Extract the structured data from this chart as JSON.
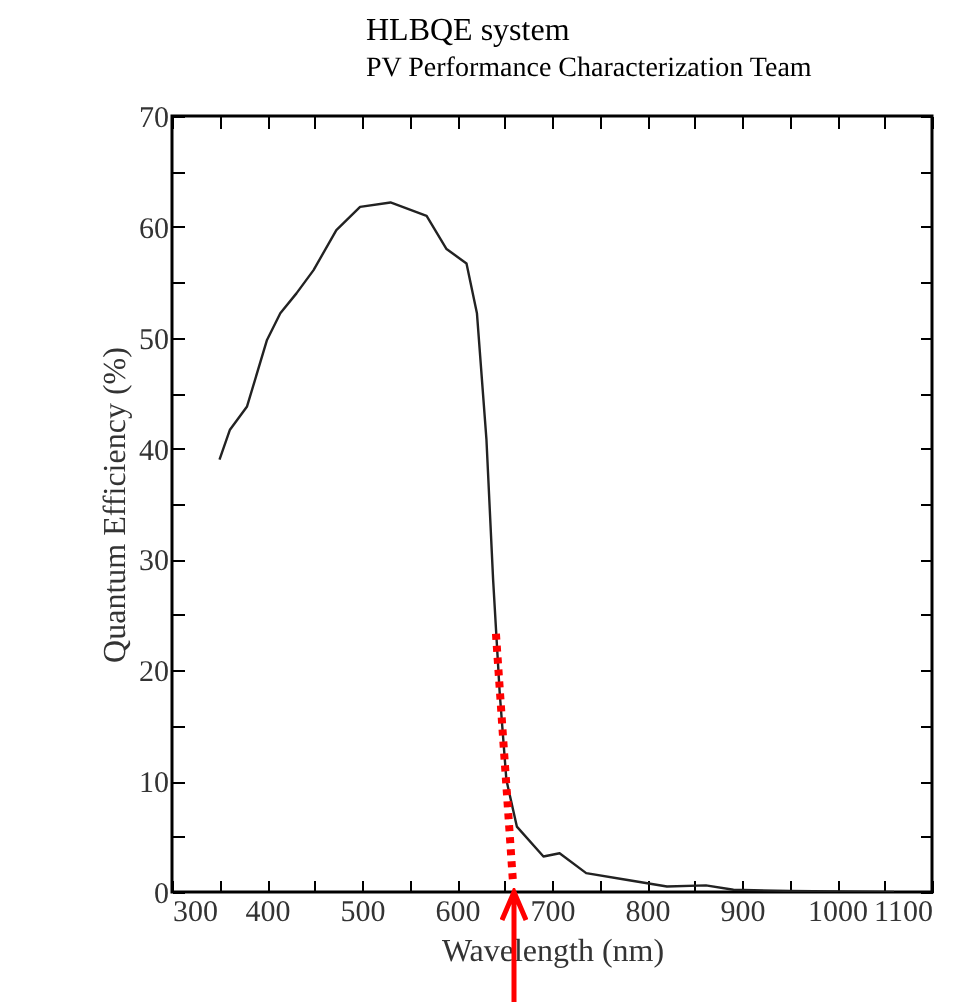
{
  "chart_data": {
    "type": "line",
    "title": "HLBQE system",
    "subtitle": "PV Performance Characterization Team",
    "xlabel": "Wavelength (nm)",
    "ylabel": "Quantum Efficiency (%)",
    "xlim": [
      300,
      1100
    ],
    "ylim": [
      0,
      70
    ],
    "xticks": [
      300,
      {
        "value": 350,
        "label": null
      },
      400,
      {
        "value": 450,
        "label": null
      },
      500,
      {
        "value": 550,
        "label": null
      },
      600,
      {
        "value": 650,
        "label": null
      },
      700,
      {
        "value": 750,
        "label": null
      },
      800,
      {
        "value": 850,
        "label": null
      },
      900,
      {
        "value": 950,
        "label": null
      },
      1000,
      {
        "value": 1050,
        "label": null
      },
      1100
    ],
    "yticks": [
      0,
      {
        "value": 5,
        "label": null
      },
      10,
      {
        "value": 15,
        "label": null
      },
      20,
      {
        "value": 25,
        "label": null
      },
      30,
      {
        "value": 35,
        "label": null
      },
      40,
      {
        "value": 45,
        "label": null
      },
      50,
      {
        "value": 55,
        "label": null
      },
      60,
      {
        "value": 65,
        "label": null
      },
      70
    ],
    "series": [
      {
        "color": "#222222",
        "line_style": "solid",
        "x": [
          350,
          361,
          379,
          400,
          414,
          431,
          449,
          473,
          498,
          530,
          568,
          589,
          610,
          621,
          631,
          638,
          645,
          652,
          663,
          691,
          708,
          736,
          778,
          821,
          862,
          891,
          950,
          1000,
          1060
        ],
        "values": [
          39,
          41.7,
          43.8,
          49.8,
          52.2,
          54,
          56.1,
          59.7,
          61.8,
          62.2,
          61,
          58,
          56.7,
          52.2,
          40.8,
          28.2,
          17.9,
          10.1,
          5.9,
          3.2,
          3.5,
          1.7,
          1.1,
          0.5,
          0.6,
          0.2,
          0.1,
          0.05,
          0
        ]
      },
      {
        "type": "line",
        "color": "#ff0000",
        "line_style": "dotted",
        "x": [
          641,
          659
        ],
        "values": [
          23.3,
          0.8
        ]
      }
    ]
  }
}
